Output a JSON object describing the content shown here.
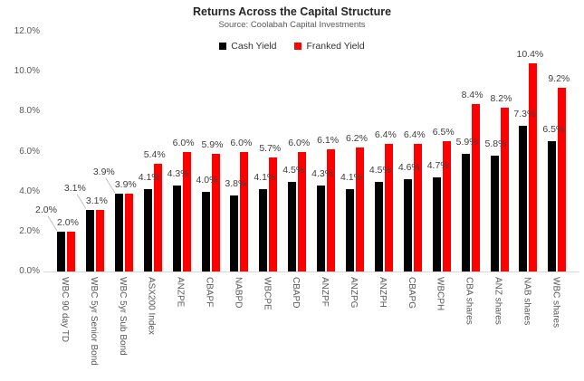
{
  "chart_data": {
    "type": "bar",
    "title": "Returns Across the Capital Structure",
    "subtitle": "Source: Coolabah Capital Investments",
    "categories": [
      "WBC 90 day TD",
      "WBC 5yr Senior Bond",
      "WBC 5yr Sub Bond",
      "ASX200 Index",
      "ANZPE",
      "CBAPF",
      "NABPD",
      "WBCPE",
      "CBAPD",
      "ANZPF",
      "ANZPG",
      "ANZPH",
      "CBAPG",
      "WBCPH",
      "CBA shares",
      "ANZ shares",
      "NAB shares",
      "WBC shares"
    ],
    "series": [
      {
        "name": "Cash Yield",
        "color": "#000000",
        "values": [
          2.0,
          3.1,
          3.9,
          4.1,
          4.3,
          4.0,
          3.8,
          4.1,
          4.5,
          4.3,
          4.1,
          4.5,
          4.6,
          4.7,
          5.9,
          5.8,
          7.3,
          6.5
        ]
      },
      {
        "name": "Franked Yield",
        "color": "#FE0000",
        "values": [
          2.0,
          3.1,
          3.9,
          5.4,
          6.0,
          5.9,
          6.0,
          5.7,
          6.0,
          6.1,
          6.2,
          6.4,
          6.4,
          6.5,
          8.4,
          8.2,
          10.4,
          9.2
        ]
      }
    ],
    "data_labels": true,
    "label_format": "0.0%",
    "xlabel": "",
    "ylabel": "",
    "ylim": [
      0,
      12
    ],
    "ytick_step": 2,
    "ytick_labels": [
      "0.0%",
      "2.0%",
      "4.0%",
      "6.0%",
      "8.0%",
      "10.0%",
      "12.0%"
    ],
    "grid": false,
    "legend_position": "top-center",
    "x_label_rotation": "vertical"
  },
  "colors": {
    "axis_text": "#595959",
    "data_label_text": "#404040",
    "axis_line": "#D9D9D9",
    "leader_line": "#BFBFBF"
  }
}
